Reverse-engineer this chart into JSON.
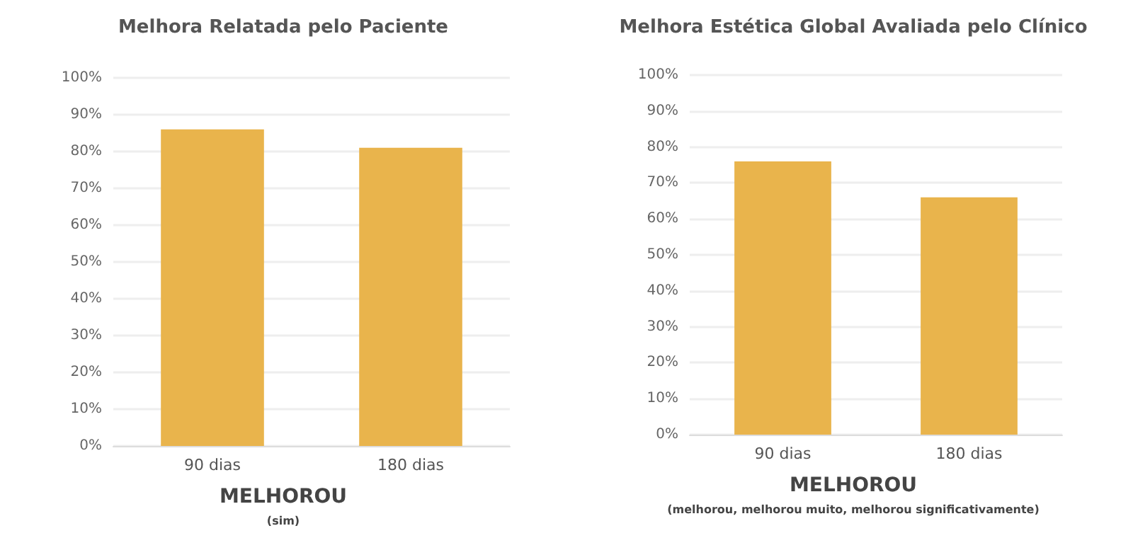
{
  "chart_data": [
    {
      "type": "bar",
      "title": "Melhora Relatada pelo Paciente",
      "categories": [
        "90 dias",
        "180 dias"
      ],
      "values": [
        86,
        81
      ],
      "color": "#e9b44c",
      "xlabel": "MELHOROU",
      "annotations": [
        "(sim)"
      ],
      "ylim": [
        0,
        100
      ],
      "yticks": [
        {
          "value": 0,
          "label": "0%"
        },
        {
          "value": 10,
          "label": "10%"
        },
        {
          "value": 20,
          "label": "20%"
        },
        {
          "value": 30,
          "label": "30%"
        },
        {
          "value": 40,
          "label": "40%"
        },
        {
          "value": 50,
          "label": "50%"
        },
        {
          "value": 60,
          "label": "60%"
        },
        {
          "value": 70,
          "label": "70%"
        },
        {
          "value": 80,
          "label": "80%"
        },
        {
          "value": 90,
          "label": "90%"
        },
        {
          "value": 100,
          "label": "100%"
        }
      ],
      "grid": "y"
    },
    {
      "type": "bar",
      "title": "Melhora Estética Global Avaliada pelo Clínico",
      "categories": [
        "90 dias",
        "180 dias"
      ],
      "values": [
        76,
        66
      ],
      "color": "#e9b44c",
      "xlabel": "MELHOROU",
      "annotations": [
        "(melhorou, melhorou muito, melhorou significativamente)"
      ],
      "ylim": [
        0,
        100
      ],
      "yticks": [
        {
          "value": 0,
          "label": "0%"
        },
        {
          "value": 10,
          "label": "10%"
        },
        {
          "value": 20,
          "label": "20%"
        },
        {
          "value": 30,
          "label": "30%"
        },
        {
          "value": 40,
          "label": "40%"
        },
        {
          "value": 50,
          "label": "50%"
        },
        {
          "value": 60,
          "label": "60%"
        },
        {
          "value": 70,
          "label": "70%"
        },
        {
          "value": 80,
          "label": "80%"
        },
        {
          "value": 90,
          "label": "90%"
        },
        {
          "value": 100,
          "label": "100%"
        }
      ],
      "grid": "y"
    }
  ]
}
